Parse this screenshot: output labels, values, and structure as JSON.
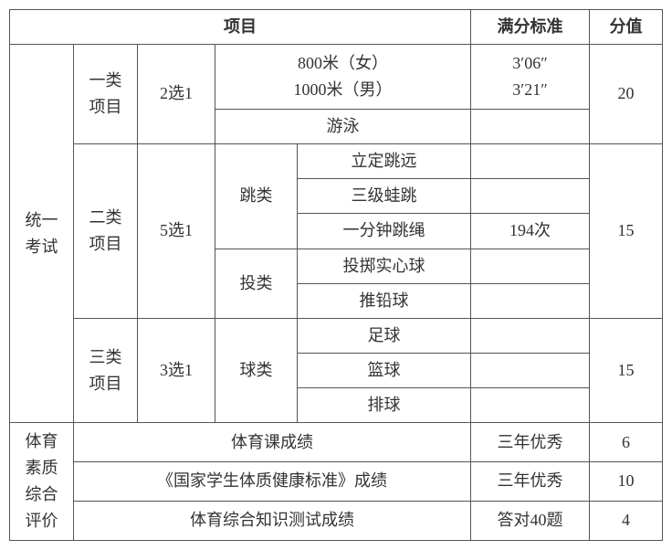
{
  "table": {
    "headers": {
      "project": "项目",
      "fullScoreStandard": "满分标准",
      "score": "分值"
    },
    "sections": {
      "unifiedExam": {
        "label": "统一\n考试",
        "categories": {
          "cat1": {
            "label": "一类\n项目",
            "selection": "2选1",
            "items": {
              "run800": "800米（女）",
              "run1000": "1000米（男）",
              "swimming": "游泳"
            },
            "standards": {
              "run800": "3′06″",
              "run1000": "3′21″"
            },
            "score": "20"
          },
          "cat2": {
            "label": "二类\n项目",
            "selection": "5选1",
            "subcats": {
              "jump": {
                "label": "跳类",
                "items": {
                  "standingJump": "立定跳远",
                  "tripleFrog": "三级蛙跳",
                  "jumpRope": "一分钟跳绳"
                }
              },
              "throw": {
                "label": "投类",
                "items": {
                  "medicineBall": "投掷实心球",
                  "shotPut": "推铅球"
                }
              }
            },
            "standards": {
              "jumpRope": "194次"
            },
            "score": "15"
          },
          "cat3": {
            "label": "三类\n项目",
            "selection": "3选1",
            "subcats": {
              "ball": {
                "label": "球类",
                "items": {
                  "football": "足球",
                  "basketball": "篮球",
                  "volleyball": "排球"
                }
              }
            },
            "score": "15"
          }
        }
      },
      "qualityEval": {
        "label": "体育\n素质\n综合\n评价",
        "rows": {
          "peGrade": {
            "label": "体育课成绩",
            "standard": "三年优秀",
            "score": "6"
          },
          "healthStandard": {
            "label": "《国家学生体质健康标准》成绩",
            "standard": "三年优秀",
            "score": "10"
          },
          "knowledgeTest": {
            "label": "体育综合知识测试成绩",
            "standard": "答对40题",
            "score": "4"
          }
        }
      }
    }
  }
}
